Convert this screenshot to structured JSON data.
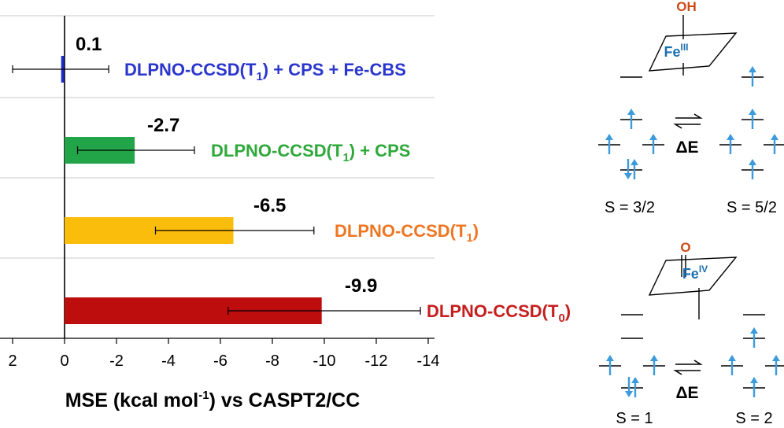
{
  "chart_data": {
    "type": "bar",
    "orientation": "horizontal",
    "x_reversed": true,
    "xlim": [
      2,
      -14
    ],
    "xticks": [
      2,
      0,
      -2,
      -4,
      -6,
      -8,
      -10,
      -12,
      -14
    ],
    "xtick_labels": [
      "2",
      "0",
      "-2",
      "-4",
      "-6",
      "-8",
      "-10",
      "-12",
      "-14"
    ],
    "xlabel_main": "MSE (kcal mol",
    "xlabel_sup": "-1",
    "xlabel_rest": ") vs CASPT2/CC",
    "grid": "horizontal lines between bars",
    "bars": [
      {
        "value": 0.1,
        "value_label": "0.1",
        "err_low": 2.0,
        "err_high": -1.7,
        "color": "#1d2bc4",
        "method_base": "DLPNO-CCSD(T",
        "method_sub": "1",
        "method_suffix": ") + CPS + Fe-CBS",
        "label_color": "#2a36cc"
      },
      {
        "value": -2.7,
        "value_label": "-2.7",
        "err_low": -0.5,
        "err_high": -5.0,
        "color": "#22a548",
        "method_base": "DLPNO-CCSD(T",
        "method_sub": "1",
        "method_suffix": ") + CPS",
        "label_color": "#2fa83a"
      },
      {
        "value": -6.5,
        "value_label": "-6.5",
        "err_low": -3.5,
        "err_high": -9.6,
        "color": "#fbbd0c",
        "method_base": "DLPNO-CCSD(T",
        "method_sub": "1",
        "method_suffix": ")",
        "label_color": "#ee7623"
      },
      {
        "value": -9.9,
        "value_label": "-9.9",
        "err_low": -6.3,
        "err_high": -13.7,
        "color": "#bd0d0d",
        "method_base": "DLPNO-CCSD(T",
        "method_sub": "0",
        "method_suffix": ")",
        "label_color": "#c61e1e"
      }
    ]
  },
  "diagram": {
    "top": {
      "ligand": "OH",
      "metal": "Fe",
      "oxidation": "III",
      "delta": "ΔE",
      "left_spin": "S = 3/2",
      "right_spin": "S = 5/2"
    },
    "bottom": {
      "ligand": "O",
      "metal": "Fe",
      "oxidation": "IV",
      "delta": "ΔE",
      "left_spin": "S = 1",
      "right_spin": "S = 2"
    },
    "colors": {
      "ligand": "#cc4a16",
      "metal": "#1a6fb0",
      "arrow": "#3d9bdc"
    }
  }
}
